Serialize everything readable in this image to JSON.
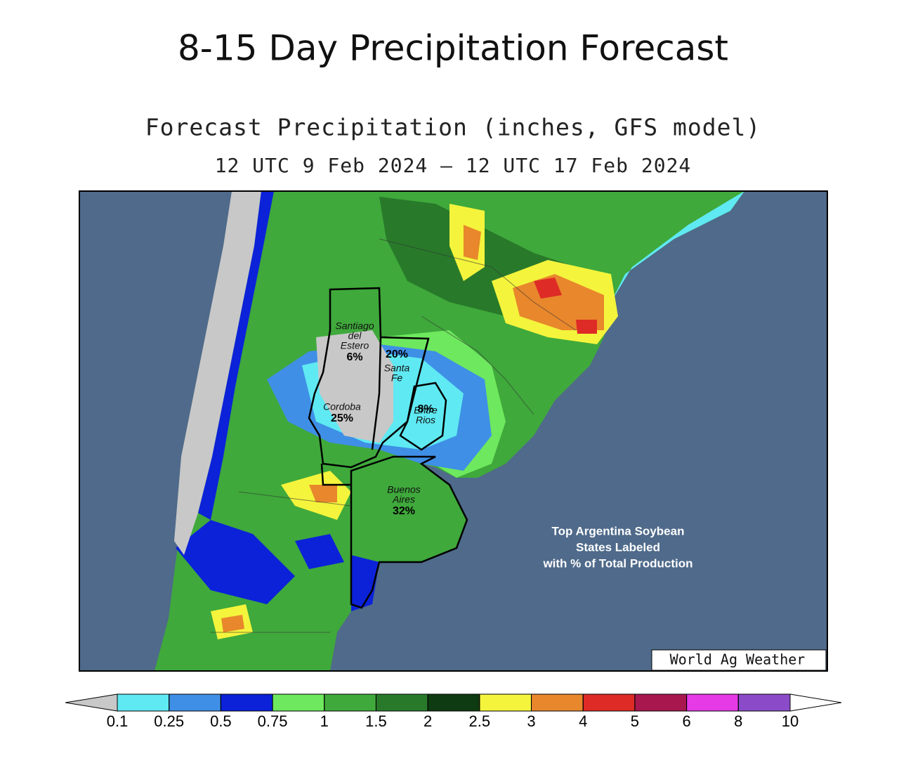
{
  "header": {
    "title": "8-15 Day Precipitation Forecast"
  },
  "map": {
    "title": "Forecast Precipitation (inches, GFS model)",
    "subtitle": "12 UTC 9 Feb 2024 – 12 UTC 17 Feb 2024",
    "regions": [
      {
        "name": [
          "Santiago",
          "del",
          "Estero"
        ],
        "share": "6%"
      },
      {
        "name": [
          "Santa",
          "Fe"
        ],
        "share": "20%"
      },
      {
        "name": [
          "Cordoba"
        ],
        "share": "25%"
      },
      {
        "name": [
          "Entre",
          "Rios"
        ],
        "share": "8%"
      },
      {
        "name": [
          "Buenos",
          "Aires"
        ],
        "share": "32%"
      }
    ],
    "annotation": [
      "Top Argentina Soybean",
      "States Labeled",
      "with % of Total Production"
    ],
    "credit": "World Ag Weather"
  },
  "colorbar": {
    "ticks": [
      0.1,
      0.25,
      0.5,
      0.75,
      1,
      1.5,
      2,
      2.5,
      3,
      4,
      5,
      6,
      8,
      10
    ],
    "colors": [
      "#5fe9f2",
      "#3f8fe6",
      "#0b22d9",
      "#6ee85e",
      "#3fa93b",
      "#287a2a",
      "#0e3b12",
      "#f4f43c",
      "#e8872c",
      "#de2b26",
      "#a8174e",
      "#e63ae6",
      "#8b4bc9"
    ],
    "under_color": "#c8c8c8",
    "over_color": "#ffffff"
  }
}
